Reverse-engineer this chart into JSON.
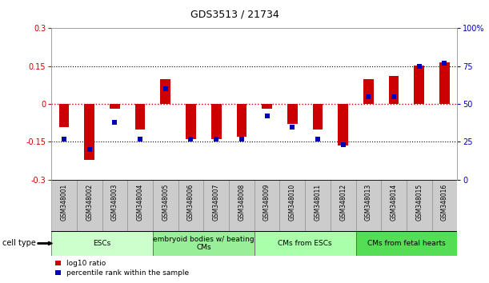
{
  "title": "GDS3513 / 21734",
  "samples": [
    "GSM348001",
    "GSM348002",
    "GSM348003",
    "GSM348004",
    "GSM348005",
    "GSM348006",
    "GSM348007",
    "GSM348008",
    "GSM348009",
    "GSM348010",
    "GSM348011",
    "GSM348012",
    "GSM348013",
    "GSM348014",
    "GSM348015",
    "GSM348016"
  ],
  "log10_ratio": [
    -0.09,
    -0.22,
    -0.02,
    -0.1,
    0.1,
    -0.14,
    -0.14,
    -0.13,
    -0.02,
    -0.08,
    -0.1,
    -0.165,
    0.1,
    0.11,
    0.153,
    0.165
  ],
  "percentile_rank": [
    27,
    20,
    38,
    27,
    60,
    27,
    27,
    27,
    42,
    35,
    27,
    23,
    55,
    55,
    75,
    77
  ],
  "ylim_left": [
    -0.3,
    0.3
  ],
  "ylim_right": [
    0,
    100
  ],
  "yticks_left": [
    -0.3,
    -0.15,
    0,
    0.15,
    0.3
  ],
  "ytick_labels_left": [
    "-0.3",
    "-0.15",
    "0",
    "0.15",
    "0.3"
  ],
  "yticks_right": [
    0,
    25,
    50,
    75,
    100
  ],
  "ytick_labels_right": [
    "0",
    "25",
    "50",
    "75",
    "100%"
  ],
  "bar_color_red": "#cc0000",
  "bar_color_blue": "#0000bb",
  "hline_color": "#cc0000",
  "dotted_color": "#000000",
  "cell_type_groups": [
    {
      "label": "ESCs",
      "start": 0,
      "end": 3,
      "color": "#ccffcc"
    },
    {
      "label": "embryoid bodies w/ beating\nCMs",
      "start": 4,
      "end": 7,
      "color": "#99ee99"
    },
    {
      "label": "CMs from ESCs",
      "start": 8,
      "end": 11,
      "color": "#aaffaa"
    },
    {
      "label": "CMs from fetal hearts",
      "start": 12,
      "end": 15,
      "color": "#55dd55"
    }
  ],
  "legend_red_label": "log10 ratio",
  "legend_blue_label": "percentile rank within the sample",
  "cell_type_label": "cell type",
  "bar_width": 0.5,
  "sample_box_color": "#cccccc",
  "sample_box_edge": "#888888"
}
